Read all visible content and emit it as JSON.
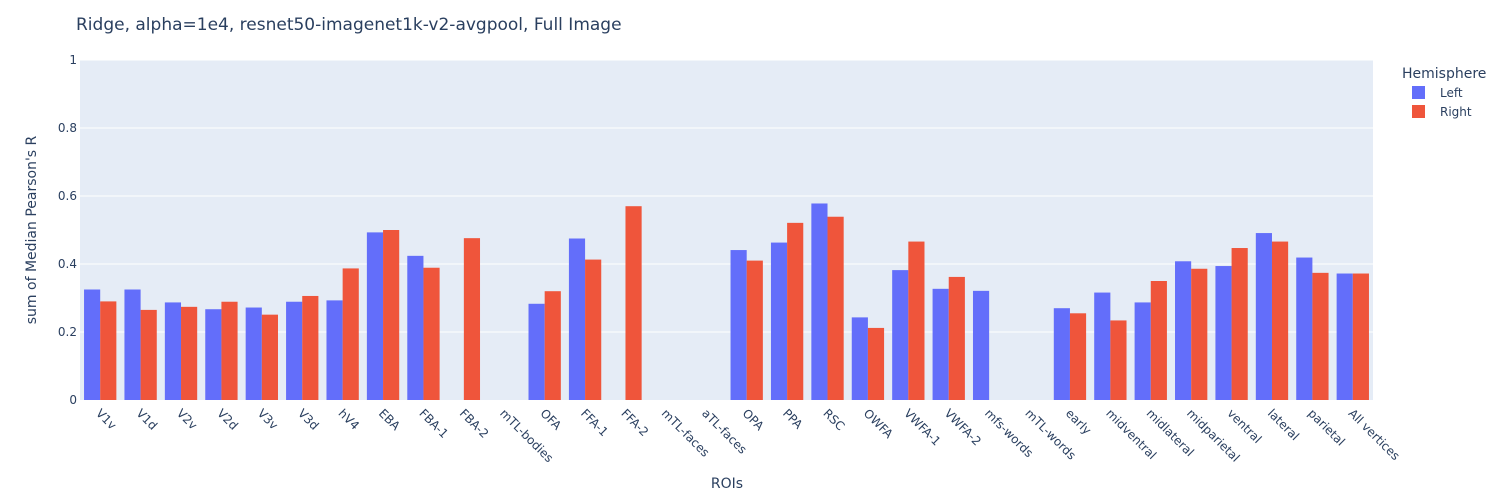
{
  "chart_data": {
    "type": "bar",
    "title": "Ridge, alpha=1e4, resnet50-imagenet1k-v2-avgpool, Full Image",
    "xlabel": "ROIs",
    "ylabel": "sum of Median Pearson's R",
    "ylim": [
      0,
      1
    ],
    "yticks": [
      "0",
      "0.2",
      "0.4",
      "0.6",
      "0.8",
      "1"
    ],
    "grid": true,
    "legend_title": "Hemisphere",
    "legend_position": "top-right",
    "categories": [
      "V1v",
      "V1d",
      "V2v",
      "V2d",
      "V3v",
      "V3d",
      "hV4",
      "EBA",
      "FBA-1",
      "FBA-2",
      "mTL-bodies",
      "OFA",
      "FFA-1",
      "FFA-2",
      "mTL-faces",
      "aTL-faces",
      "OPA",
      "PPA",
      "RSC",
      "OWFA",
      "VWFA-1",
      "VWFA-2",
      "mfs-words",
      "mTL-words",
      "early",
      "midventral",
      "midlateral",
      "midparietal",
      "ventral",
      "lateral",
      "parietal",
      "All vertices"
    ],
    "series": [
      {
        "name": "Left",
        "color": "#636efa",
        "values": [
          0.325,
          0.325,
          0.287,
          0.267,
          0.272,
          0.289,
          0.293,
          0.493,
          0.424,
          null,
          null,
          0.283,
          0.475,
          null,
          null,
          null,
          0.441,
          0.463,
          0.578,
          0.243,
          0.382,
          0.327,
          0.321,
          null,
          0.27,
          0.316,
          0.287,
          0.408,
          0.394,
          0.491,
          0.419,
          0.372
        ]
      },
      {
        "name": "Right",
        "color": "#ef553b",
        "values": [
          0.29,
          0.265,
          0.274,
          0.289,
          0.251,
          0.306,
          0.387,
          0.5,
          0.389,
          0.476,
          null,
          0.32,
          0.413,
          0.57,
          null,
          null,
          0.41,
          0.521,
          0.539,
          0.212,
          0.466,
          0.362,
          null,
          null,
          0.255,
          0.234,
          0.35,
          0.386,
          0.447,
          0.466,
          0.374,
          0.372
        ]
      }
    ]
  }
}
